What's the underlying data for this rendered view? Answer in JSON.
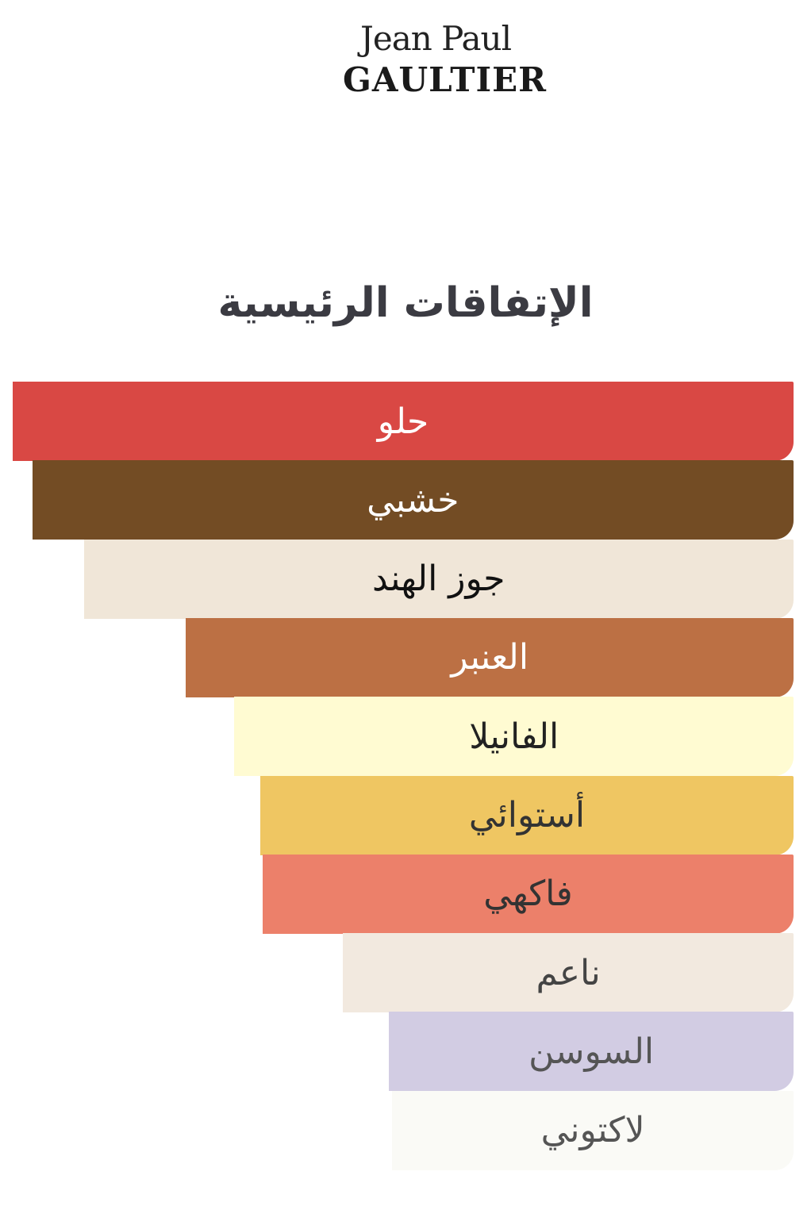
{
  "logo": {
    "line1": "Jean Paul",
    "line2": "GAULTIER"
  },
  "chart_data": {
    "type": "bar",
    "orientation": "horizontal",
    "title": "الإتفاقات الرئيسية",
    "categories": [
      "حلو",
      "خشبي",
      "جوز الهند",
      "العنبر",
      "الفانيلا",
      "أستوائي",
      "فاكهي",
      "ناعم",
      "السوسن",
      "لاكتوني"
    ],
    "values": [
      100,
      97.5,
      90.9,
      77.8,
      71.6,
      68.3,
      68.0,
      57.7,
      51.8,
      51.4
    ],
    "unit": "percent",
    "xlim": [
      0,
      100
    ],
    "grid": false,
    "bar_colors": [
      "#d94844",
      "#734c24",
      "#f0e6d8",
      "#bc7044",
      "#fffbd2",
      "#efc662",
      "#ec806a",
      "#f2e9df",
      "#d2cce3",
      "#fafaf6"
    ],
    "label_colors": [
      "#ffffff",
      "#ffffff",
      "#111111",
      "#ffffff",
      "#222222",
      "#333333",
      "#333333",
      "#444444",
      "#555555",
      "#555555"
    ]
  }
}
